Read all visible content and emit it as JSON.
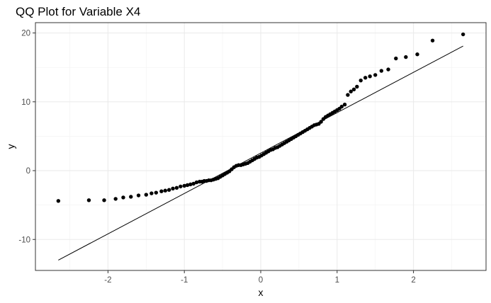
{
  "chart_data": {
    "type": "scatter",
    "title": "QQ Plot for Variable X4",
    "xlabel": "x",
    "ylabel": "y",
    "xlim": [
      -2.95,
      2.95
    ],
    "ylim": [
      -14.5,
      21.5
    ],
    "x_ticks": [
      -2,
      -1,
      0,
      1,
      2
    ],
    "x_tick_labels": [
      "-2",
      "-1",
      "0",
      "1",
      "2"
    ],
    "y_ticks": [
      -10,
      0,
      10,
      20
    ],
    "y_tick_labels": [
      "-10",
      "0",
      "10",
      "20"
    ],
    "grid": true,
    "theme": "bw",
    "reference_line": {
      "x": [
        -2.65,
        2.65
      ],
      "y": [
        -13.0,
        18.1
      ]
    },
    "points": [
      {
        "x": -2.65,
        "y": -4.4
      },
      {
        "x": -2.25,
        "y": -4.3
      },
      {
        "x": -2.05,
        "y": -4.3
      },
      {
        "x": -1.9,
        "y": -4.1
      },
      {
        "x": -1.8,
        "y": -3.9
      },
      {
        "x": -1.7,
        "y": -3.8
      },
      {
        "x": -1.6,
        "y": -3.6
      },
      {
        "x": -1.5,
        "y": -3.5
      },
      {
        "x": -1.43,
        "y": -3.3
      },
      {
        "x": -1.37,
        "y": -3.2
      },
      {
        "x": -1.3,
        "y": -3.0
      },
      {
        "x": -1.25,
        "y": -2.9
      },
      {
        "x": -1.2,
        "y": -2.8
      },
      {
        "x": -1.15,
        "y": -2.6
      },
      {
        "x": -1.1,
        "y": -2.5
      },
      {
        "x": -1.05,
        "y": -2.3
      },
      {
        "x": -1.0,
        "y": -2.2
      },
      {
        "x": -0.96,
        "y": -2.1
      },
      {
        "x": -0.92,
        "y": -2.0
      },
      {
        "x": -0.88,
        "y": -1.9
      },
      {
        "x": -0.84,
        "y": -1.7
      },
      {
        "x": -0.8,
        "y": -1.6
      },
      {
        "x": -0.77,
        "y": -1.6
      },
      {
        "x": -0.74,
        "y": -1.5
      },
      {
        "x": -0.71,
        "y": -1.5
      },
      {
        "x": -0.68,
        "y": -1.4
      },
      {
        "x": -0.65,
        "y": -1.4
      },
      {
        "x": -0.62,
        "y": -1.3
      },
      {
        "x": -0.59,
        "y": -1.2
      },
      {
        "x": -0.56,
        "y": -1.1
      },
      {
        "x": -0.53,
        "y": -0.9
      },
      {
        "x": -0.5,
        "y": -0.7
      },
      {
        "x": -0.47,
        "y": -0.5
      },
      {
        "x": -0.44,
        "y": -0.3
      },
      {
        "x": -0.41,
        "y": -0.1
      },
      {
        "x": -0.38,
        "y": 0.2
      },
      {
        "x": -0.35,
        "y": 0.5
      },
      {
        "x": -0.32,
        "y": 0.7
      },
      {
        "x": -0.29,
        "y": 0.8
      },
      {
        "x": -0.26,
        "y": 0.8
      },
      {
        "x": -0.23,
        "y": 0.9
      },
      {
        "x": -0.2,
        "y": 1.0
      },
      {
        "x": -0.17,
        "y": 1.1
      },
      {
        "x": -0.14,
        "y": 1.3
      },
      {
        "x": -0.11,
        "y": 1.5
      },
      {
        "x": -0.08,
        "y": 1.7
      },
      {
        "x": -0.05,
        "y": 1.9
      },
      {
        "x": -0.02,
        "y": 2.0
      },
      {
        "x": 0.01,
        "y": 2.2
      },
      {
        "x": 0.04,
        "y": 2.4
      },
      {
        "x": 0.07,
        "y": 2.6
      },
      {
        "x": 0.1,
        "y": 2.8
      },
      {
        "x": 0.13,
        "y": 3.0
      },
      {
        "x": 0.16,
        "y": 3.1
      },
      {
        "x": 0.19,
        "y": 3.3
      },
      {
        "x": 0.22,
        "y": 3.4
      },
      {
        "x": 0.25,
        "y": 3.6
      },
      {
        "x": 0.28,
        "y": 3.8
      },
      {
        "x": 0.31,
        "y": 4.0
      },
      {
        "x": 0.34,
        "y": 4.2
      },
      {
        "x": 0.37,
        "y": 4.4
      },
      {
        "x": 0.4,
        "y": 4.6
      },
      {
        "x": 0.43,
        "y": 4.8
      },
      {
        "x": 0.46,
        "y": 5.0
      },
      {
        "x": 0.49,
        "y": 5.2
      },
      {
        "x": 0.52,
        "y": 5.4
      },
      {
        "x": 0.55,
        "y": 5.6
      },
      {
        "x": 0.58,
        "y": 5.8
      },
      {
        "x": 0.61,
        "y": 6.0
      },
      {
        "x": 0.64,
        "y": 6.2
      },
      {
        "x": 0.67,
        "y": 6.4
      },
      {
        "x": 0.7,
        "y": 6.6
      },
      {
        "x": 0.73,
        "y": 6.7
      },
      {
        "x": 0.76,
        "y": 6.8
      },
      {
        "x": 0.79,
        "y": 7.1
      },
      {
        "x": 0.82,
        "y": 7.5
      },
      {
        "x": 0.85,
        "y": 7.8
      },
      {
        "x": 0.88,
        "y": 8.0
      },
      {
        "x": 0.91,
        "y": 8.2
      },
      {
        "x": 0.94,
        "y": 8.4
      },
      {
        "x": 0.97,
        "y": 8.6
      },
      {
        "x": 1.0,
        "y": 8.8
      },
      {
        "x": 1.03,
        "y": 9.0
      },
      {
        "x": 1.06,
        "y": 9.3
      },
      {
        "x": 1.1,
        "y": 9.6
      },
      {
        "x": 1.14,
        "y": 11.0
      },
      {
        "x": 1.18,
        "y": 11.5
      },
      {
        "x": 1.22,
        "y": 11.8
      },
      {
        "x": 1.26,
        "y": 12.2
      },
      {
        "x": 1.31,
        "y": 13.1
      },
      {
        "x": 1.37,
        "y": 13.5
      },
      {
        "x": 1.43,
        "y": 13.7
      },
      {
        "x": 1.5,
        "y": 13.9
      },
      {
        "x": 1.58,
        "y": 14.5
      },
      {
        "x": 1.67,
        "y": 14.7
      },
      {
        "x": 1.77,
        "y": 16.3
      },
      {
        "x": 1.9,
        "y": 16.5
      },
      {
        "x": 2.05,
        "y": 16.9
      },
      {
        "x": 2.25,
        "y": 18.9
      },
      {
        "x": 2.65,
        "y": 19.8
      }
    ]
  }
}
